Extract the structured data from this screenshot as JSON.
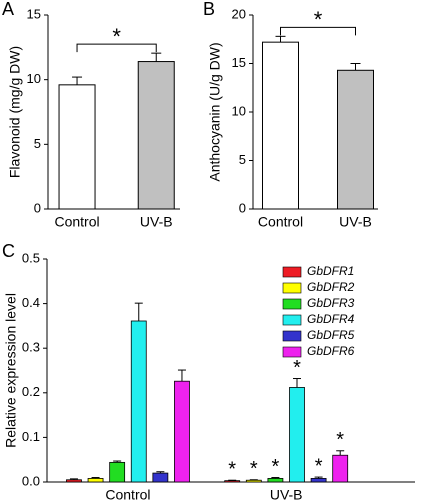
{
  "chart_data": [
    {
      "type": "bar",
      "panel": "A",
      "ylabel": "Flavonoid (mg/g DW)",
      "categories": [
        "Control",
        "UV-B"
      ],
      "values": [
        9.6,
        11.4
      ],
      "errors": [
        0.6,
        0.65
      ],
      "colors": [
        "#ffffff",
        "#c0c0c0"
      ],
      "ylim": [
        0,
        15
      ],
      "yticks": [
        0,
        5,
        10,
        15
      ],
      "significance": "*"
    },
    {
      "type": "bar",
      "panel": "B",
      "ylabel": "Anthocyanin (U/g DW)",
      "categories": [
        "Control",
        "UV-B"
      ],
      "values": [
        17.2,
        14.3
      ],
      "errors": [
        0.6,
        0.7
      ],
      "colors": [
        "#ffffff",
        "#c0c0c0"
      ],
      "ylim": [
        0,
        20
      ],
      "yticks": [
        0,
        5,
        10,
        15,
        20
      ],
      "significance": "*"
    },
    {
      "type": "bar",
      "panel": "C",
      "ylabel": "Relative expression level",
      "categories": [
        "Control",
        "UV-B"
      ],
      "ylim": [
        0,
        0.5
      ],
      "yticks": [
        {
          "value": 0,
          "label": "0.0"
        },
        0.1,
        0.2,
        0.3,
        0.4,
        0.5
      ],
      "legend": "upper right",
      "series": [
        {
          "name": "GbDFR1",
          "color": "#ee1c25",
          "values": [
            0.005,
            0.003
          ],
          "errors": [
            0.002,
            0.001
          ],
          "markers": [
            null,
            "*"
          ]
        },
        {
          "name": "GbDFR2",
          "color": "#ffff00",
          "values": [
            0.008,
            0.004
          ],
          "errors": [
            0.002,
            0.001
          ],
          "markers": [
            null,
            "*"
          ]
        },
        {
          "name": "GbDFR3",
          "color": "#22dd22",
          "values": [
            0.044,
            0.008
          ],
          "errors": [
            0.003,
            0.002
          ],
          "markers": [
            null,
            "*"
          ]
        },
        {
          "name": "GbDFR4",
          "color": "#22eeee",
          "values": [
            0.361,
            0.212
          ],
          "errors": [
            0.04,
            0.02
          ],
          "markers": [
            null,
            "*"
          ]
        },
        {
          "name": "GbDFR5",
          "color": "#3333cc",
          "values": [
            0.02,
            0.008
          ],
          "errors": [
            0.003,
            0.003
          ],
          "markers": [
            null,
            "*"
          ]
        },
        {
          "name": "GbDFR6",
          "color": "#ee22ee",
          "values": [
            0.226,
            0.06
          ],
          "errors": [
            0.025,
            0.01
          ],
          "markers": [
            null,
            "*"
          ]
        }
      ]
    }
  ]
}
